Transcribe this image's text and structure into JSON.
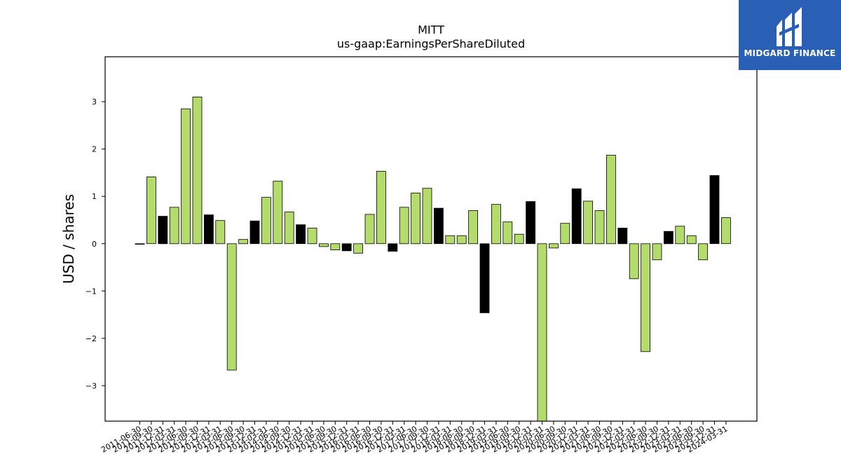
{
  "brand": {
    "name": "MIDGARD FINANCE",
    "bg": "#2a5fb6"
  },
  "chart_data": {
    "type": "bar",
    "title": "MITT",
    "subtitle": "us-gaap:EarningsPerShareDiluted",
    "ylabel": "USD / shares",
    "xlabel": "",
    "ylim": [
      -3.75,
      3.95
    ],
    "yticks": [
      -3,
      -2,
      -1,
      0,
      1,
      2,
      3
    ],
    "ytick_labels": [
      "−3",
      "−2",
      "−1",
      "0",
      "1",
      "2",
      "3"
    ],
    "grid": false,
    "colors": {
      "quarter": "#b3dc6c",
      "annual": "#000000",
      "edge": "#000000"
    },
    "categories": [
      "2011-06-30",
      "2011-09-30",
      "2011-12-31",
      "2012-03-31",
      "2012-06-30",
      "2012-09-30",
      "2012-12-31",
      "2013-03-31",
      "2013-06-30",
      "2013-09-30",
      "2013-12-31",
      "2014-03-31",
      "2014-06-30",
      "2014-09-30",
      "2014-12-31",
      "2015-03-31",
      "2015-06-30",
      "2015-09-30",
      "2015-12-31",
      "2016-03-31",
      "2016-06-30",
      "2016-09-30",
      "2016-12-31",
      "2017-03-31",
      "2017-06-30",
      "2017-09-30",
      "2017-12-31",
      "2018-03-31",
      "2018-06-30",
      "2018-09-30",
      "2018-12-31",
      "2019-03-31",
      "2019-06-30",
      "2019-09-30",
      "2019-12-31",
      "2020-03-31",
      "2020-06-30",
      "2020-09-30",
      "2020-12-31",
      "2021-03-31",
      "2021-06-30",
      "2021-09-30",
      "2021-12-31",
      "2022-03-31",
      "2022-06-30",
      "2022-09-30",
      "2022-12-31",
      "2023-03-31",
      "2023-06-30",
      "2023-09-30",
      "2023-12-31",
      "2024-03-31"
    ],
    "values": [
      0.0,
      1.41,
      0.58,
      0.77,
      2.85,
      3.1,
      0.61,
      0.49,
      -2.67,
      0.09,
      0.48,
      0.98,
      1.32,
      0.67,
      0.4,
      0.33,
      -0.06,
      -0.13,
      -0.15,
      -0.2,
      0.62,
      1.53,
      -0.16,
      0.77,
      1.07,
      1.17,
      0.75,
      0.17,
      0.17,
      0.7,
      -1.46,
      0.83,
      0.46,
      0.2,
      0.89,
      -3.75,
      -0.09,
      0.43,
      1.16,
      0.9,
      0.7,
      1.87,
      0.33,
      -0.74,
      -2.28,
      -0.34,
      0.26,
      0.37,
      0.17,
      -0.34,
      1.44,
      0.55
    ],
    "annual": [
      false,
      false,
      true,
      false,
      false,
      false,
      true,
      false,
      false,
      false,
      true,
      false,
      false,
      false,
      true,
      false,
      false,
      false,
      true,
      false,
      false,
      false,
      true,
      false,
      false,
      false,
      true,
      false,
      false,
      false,
      true,
      false,
      false,
      false,
      true,
      false,
      false,
      false,
      true,
      false,
      false,
      false,
      true,
      false,
      false,
      false,
      true,
      false,
      false,
      false,
      true,
      false
    ]
  }
}
